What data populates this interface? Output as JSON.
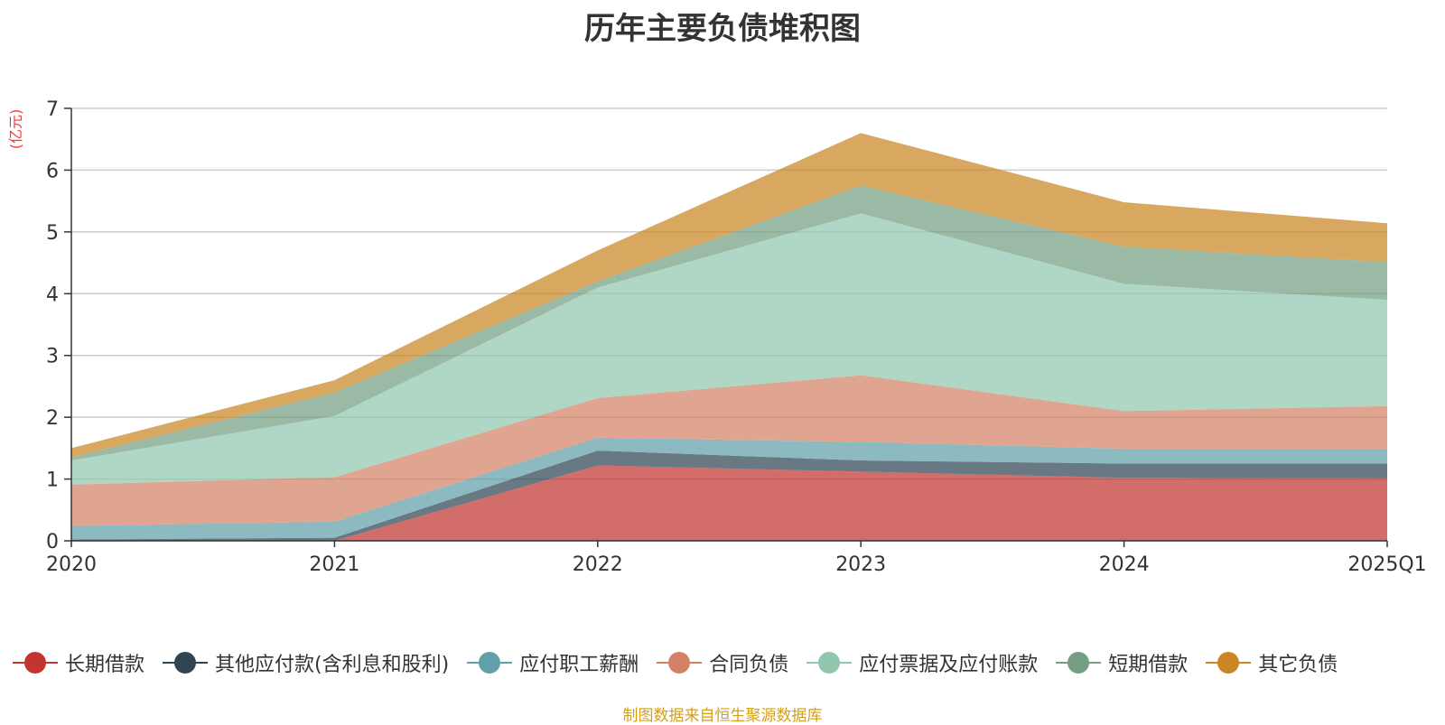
{
  "chart_data": {
    "type": "area",
    "stacked": true,
    "title": "历年主要负债堆积图",
    "ylabel": "(亿元)",
    "xlabel": "",
    "categories": [
      "2020",
      "2021",
      "2022",
      "2023",
      "2024",
      "2025Q1"
    ],
    "ylim": [
      0,
      7
    ],
    "yticks": [
      0,
      1,
      2,
      3,
      4,
      5,
      6,
      7
    ],
    "grid": true,
    "legend_position": "bottom",
    "series": [
      {
        "name": "长期借款",
        "color": "#c23531",
        "values": [
          0.0,
          0.0,
          1.22,
          1.12,
          1.02,
          1.01
        ]
      },
      {
        "name": "其他应付款(含利息和股利)",
        "color": "#2f4554",
        "values": [
          0.02,
          0.05,
          0.24,
          0.18,
          0.23,
          0.24
        ]
      },
      {
        "name": "应付职工薪酬",
        "color": "#61a0a8",
        "values": [
          0.22,
          0.26,
          0.21,
          0.3,
          0.24,
          0.24
        ]
      },
      {
        "name": "合同负债",
        "color": "#d48265",
        "values": [
          0.67,
          0.72,
          0.64,
          1.08,
          0.61,
          0.69
        ]
      },
      {
        "name": "应付票据及应付账款",
        "color": "#91c7ae",
        "values": [
          0.39,
          0.99,
          1.79,
          2.62,
          2.06,
          1.72
        ]
      },
      {
        "name": "短期借款",
        "color": "#749f83",
        "values": [
          0.05,
          0.38,
          0.1,
          0.45,
          0.6,
          0.61
        ]
      },
      {
        "name": "其它负债",
        "color": "#ca8622",
        "values": [
          0.15,
          0.2,
          0.5,
          0.85,
          0.72,
          0.63
        ]
      }
    ]
  },
  "source_note": "制图数据来自恒生聚源数据库"
}
